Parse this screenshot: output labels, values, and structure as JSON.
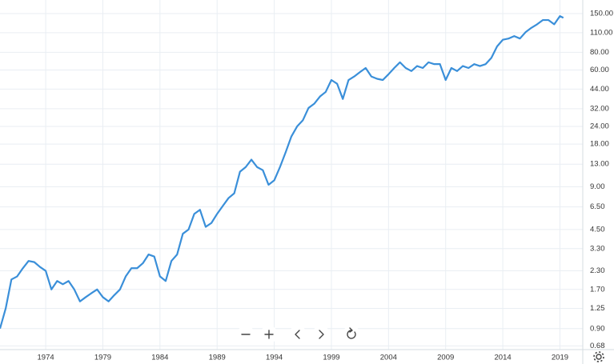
{
  "chart_data": {
    "type": "line",
    "log_y": true,
    "grid": true,
    "color": "#3a8fd9",
    "xlim": [
      1970,
      2021
    ],
    "xticks": [
      1974,
      1979,
      1984,
      1989,
      1994,
      1999,
      2004,
      2009,
      2014,
      2019
    ],
    "ylim": [
      0.64,
      187
    ],
    "yticks": [
      {
        "value": 150,
        "label": "150.00"
      },
      {
        "value": 110,
        "label": "110.00"
      },
      {
        "value": 80,
        "label": "80.00"
      },
      {
        "value": 60,
        "label": "60.00"
      },
      {
        "value": 44,
        "label": "44.00"
      },
      {
        "value": 32,
        "label": "32.00"
      },
      {
        "value": 24,
        "label": "24.00"
      },
      {
        "value": 18,
        "label": "18.00"
      },
      {
        "value": 13,
        "label": "13.00"
      },
      {
        "value": 9,
        "label": "9.00"
      },
      {
        "value": 6.5,
        "label": "6.50"
      },
      {
        "value": 4.5,
        "label": "4.50"
      },
      {
        "value": 3.3,
        "label": "3.30"
      },
      {
        "value": 2.3,
        "label": "2.30"
      },
      {
        "value": 1.7,
        "label": "1.70"
      },
      {
        "value": 1.25,
        "label": "1.25"
      },
      {
        "value": 0.9,
        "label": "0.90"
      },
      {
        "value": 0.68,
        "label": "0.68"
      }
    ],
    "x": [
      1970.0,
      1970.5,
      1971.0,
      1971.5,
      1972.0,
      1972.5,
      1973.0,
      1973.5,
      1974.0,
      1974.5,
      1975.0,
      1975.5,
      1976.0,
      1976.5,
      1977.0,
      1977.5,
      1978.0,
      1978.5,
      1979.0,
      1979.5,
      1980.0,
      1980.5,
      1981.0,
      1981.5,
      1982.0,
      1982.5,
      1983.0,
      1983.5,
      1984.0,
      1984.5,
      1985.0,
      1985.5,
      1986.0,
      1986.5,
      1987.0,
      1987.5,
      1988.0,
      1988.5,
      1989.0,
      1989.5,
      1990.0,
      1990.5,
      1991.0,
      1991.5,
      1992.0,
      1992.5,
      1993.0,
      1993.5,
      1994.0,
      1994.5,
      1995.0,
      1995.5,
      1996.0,
      1996.5,
      1997.0,
      1997.5,
      1998.0,
      1998.5,
      1999.0,
      1999.5,
      2000.0,
      2000.5,
      2001.0,
      2001.5,
      2002.0,
      2002.5,
      2003.0,
      2003.5,
      2004.0,
      2004.5,
      2005.0,
      2005.5,
      2006.0,
      2006.5,
      2007.0,
      2007.5,
      2008.0,
      2008.5,
      2009.0,
      2009.5,
      2010.0,
      2010.5,
      2011.0,
      2011.5,
      2012.0,
      2012.5,
      2013.0,
      2013.5,
      2014.0,
      2014.5,
      2015.0,
      2015.5,
      2016.0,
      2016.5,
      2017.0,
      2017.5,
      2018.0,
      2018.5,
      2019.0,
      2019.3
    ],
    "values": [
      0.9,
      1.25,
      2.0,
      2.1,
      2.4,
      2.7,
      2.65,
      2.45,
      2.3,
      1.7,
      1.95,
      1.85,
      1.95,
      1.7,
      1.4,
      1.5,
      1.6,
      1.7,
      1.5,
      1.4,
      1.55,
      1.7,
      2.1,
      2.4,
      2.4,
      2.6,
      3.0,
      2.9,
      2.1,
      1.95,
      2.7,
      3.0,
      4.2,
      4.5,
      5.8,
      6.2,
      4.7,
      5.0,
      5.8,
      6.6,
      7.5,
      8.1,
      11.5,
      12.4,
      14.0,
      12.4,
      11.8,
      9.3,
      10.0,
      12.4,
      15.8,
      20.4,
      24.0,
      26.5,
      32.4,
      34.7,
      39,
      42,
      51,
      48,
      37.5,
      51,
      54,
      58,
      62,
      54,
      52,
      51,
      56,
      62,
      68,
      62,
      59,
      64,
      62,
      68,
      66,
      66,
      51,
      62,
      59,
      64,
      62,
      66,
      64,
      66,
      73,
      88,
      98,
      100,
      104,
      100,
      111,
      119,
      126,
      135,
      135,
      126,
      144,
      140
    ]
  }
}
